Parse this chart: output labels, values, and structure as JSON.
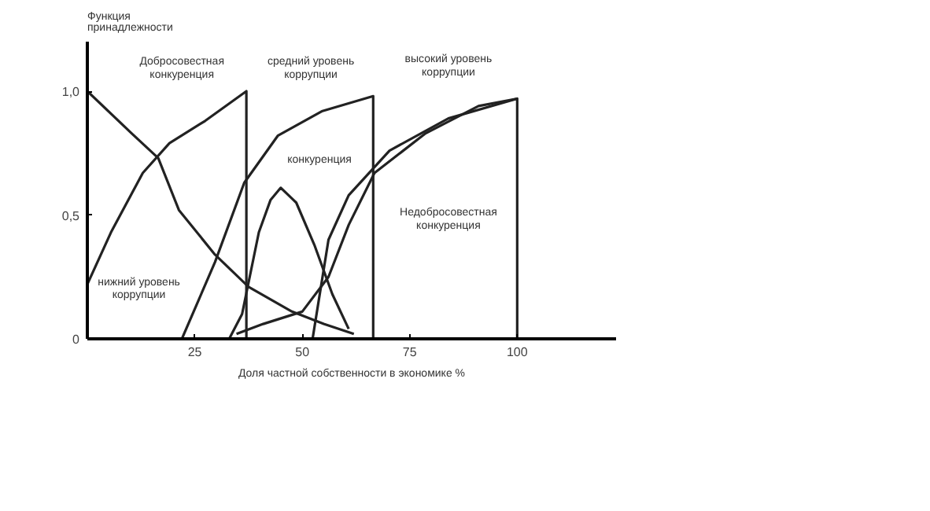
{
  "chart_data": {
    "type": "line",
    "ylabel": "Функция принадлежности",
    "xlabel": "Доля частной собственности в экономике %",
    "xlim": [
      0,
      123
    ],
    "ylim": [
      0,
      1.2
    ],
    "xticks": [
      25,
      50,
      75,
      100
    ],
    "yticks": [
      {
        "value": 0,
        "label": "0"
      },
      {
        "value": 0.5,
        "label": "0,5"
      },
      {
        "value": 1,
        "label": "1,0"
      }
    ],
    "grid": false,
    "marker": "none",
    "line_style": "solid",
    "series": [
      {
        "color": "#222222",
        "x": [
          0,
          10.3,
          16.5,
          21.3,
          29.7,
          37.5,
          47.6,
          55,
          62
        ],
        "values": [
          1.0,
          0.83,
          0.73,
          0.52,
          0.34,
          0.21,
          0.11,
          0.06,
          0.02
        ]
      },
      {
        "color": "#222222",
        "x": [
          0,
          5.5,
          12.9,
          19.1,
          27.4,
          37,
          37
        ],
        "values": [
          0.22,
          0.43,
          0.67,
          0.79,
          0.88,
          1.0,
          0
        ]
      },
      {
        "color": "#222222",
        "x": [
          22,
          29.7,
          36.5,
          44.3,
          54.7,
          66.5,
          66.5
        ],
        "values": [
          0,
          0.31,
          0.63,
          0.82,
          0.92,
          0.98,
          0
        ]
      },
      {
        "color": "#222222",
        "x": [
          33,
          36,
          39.9,
          42.6,
          45,
          48.6,
          52.8,
          57,
          60.8
        ],
        "values": [
          0,
          0.1,
          0.43,
          0.56,
          0.61,
          0.55,
          0.38,
          0.18,
          0.04
        ]
      },
      {
        "color": "#222222",
        "x": [
          52.4,
          56.1,
          60.8,
          70.3,
          84,
          100,
          100
        ],
        "values": [
          0,
          0.4,
          0.58,
          0.76,
          0.89,
          0.97,
          0
        ]
      },
      {
        "color": "#222222",
        "x": [
          34.7,
          40.9,
          50,
          56.1,
          60.8,
          66.8,
          78.7,
          91,
          100
        ],
        "values": [
          0.02,
          0.06,
          0.11,
          0.25,
          0.46,
          0.67,
          0.83,
          0.94,
          0.97
        ]
      }
    ],
    "annotations": [
      "Добросовестная\nконкуренция",
      "нижний уровень\nкоррупции",
      "средний уровень\nкоррупции",
      "конкуренция",
      "высокий уровень\nкоррупции",
      "Недобросовестная\nконкуренция"
    ]
  }
}
